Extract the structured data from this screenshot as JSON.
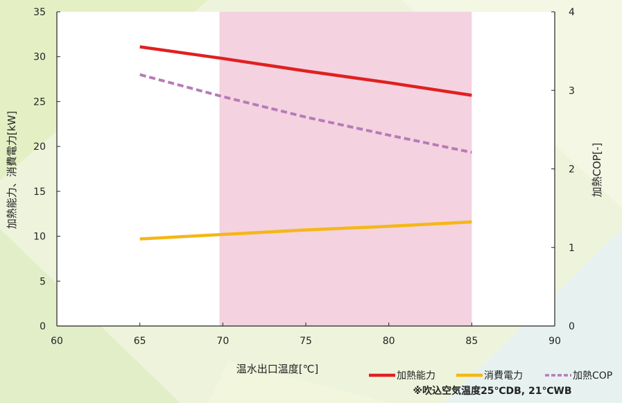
{
  "chart_data": {
    "type": "line",
    "xlabel": "温水出口温度[℃]",
    "ylabel_left": "加熱能力、消費電力[kW]",
    "ylabel_right": "加熱COP[-]",
    "x_ticks": [
      60,
      65,
      70,
      75,
      80,
      85,
      90
    ],
    "y_left_ticks": [
      0,
      5,
      10,
      15,
      20,
      25,
      30,
      35
    ],
    "y_right_ticks": [
      0,
      1,
      2,
      3,
      4
    ],
    "xlim": [
      60,
      90
    ],
    "ylim_left": [
      0,
      35
    ],
    "ylim_right": [
      0,
      4
    ],
    "shaded_region": {
      "x_from": 69.8,
      "x_to": 85,
      "color": "#f4d2e0"
    },
    "series": [
      {
        "name": "加熱能力",
        "axis": "left",
        "color": "#e02020",
        "dash": "solid",
        "x": [
          65,
          70,
          75,
          80,
          85
        ],
        "y": [
          31.1,
          29.8,
          28.4,
          27.1,
          25.7
        ]
      },
      {
        "name": "消費電力",
        "axis": "left",
        "color": "#f5b716",
        "dash": "solid",
        "x": [
          65,
          70,
          75,
          80,
          85
        ],
        "y": [
          9.7,
          10.2,
          10.7,
          11.1,
          11.6
        ]
      },
      {
        "name": "加熱COP",
        "axis": "right",
        "color": "#b87ab8",
        "dash": "dashed",
        "x": [
          65,
          70,
          75,
          80,
          85
        ],
        "y": [
          3.2,
          2.92,
          2.66,
          2.43,
          2.21
        ]
      }
    ],
    "legend_position": "bottom-right",
    "note": "※吹込空気温度25℃DB, 21℃WB"
  }
}
